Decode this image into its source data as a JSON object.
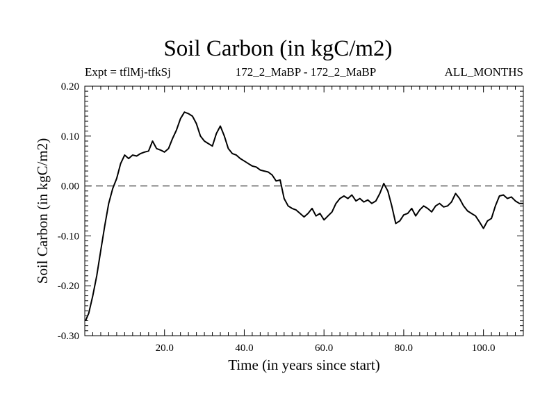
{
  "header": {
    "title": "Soil Carbon (in kgC/m2)",
    "expt": "Expt = tflMj-tfkSj",
    "subtitle": "172_2_MaBP - 172_2_MaBP",
    "period": "ALL_MONTHS"
  },
  "chart_data": {
    "type": "line",
    "title": "Soil Carbon (in kgC/m2)",
    "xlabel": "Time (in years since start)",
    "ylabel": "Soil Carbon (in kgC/m2)",
    "xlim": [
      0,
      110
    ],
    "ylim": [
      -0.3,
      0.2
    ],
    "x_ticks": [
      20,
      40,
      60,
      80,
      100
    ],
    "x_tick_labels": [
      "20.0",
      "40.0",
      "60.0",
      "80.0",
      "100.0"
    ],
    "y_ticks": [
      -0.3,
      -0.2,
      -0.1,
      0.0,
      0.1,
      0.2
    ],
    "y_tick_labels": [
      "-0.30",
      "-0.20",
      "-0.10",
      "0.00",
      "0.10",
      "0.20"
    ],
    "reference_line": {
      "y": 0.0,
      "style": "dashed"
    },
    "series": [
      {
        "name": "Soil Carbon",
        "x": [
          0.2,
          1,
          2,
          3,
          4,
          5,
          6,
          7,
          8,
          9,
          10,
          11,
          12,
          13,
          14,
          15,
          16,
          17,
          18,
          19,
          20,
          21,
          22,
          23,
          24,
          25,
          26,
          27,
          28,
          29,
          30,
          31,
          32,
          33,
          34,
          35,
          36,
          37,
          38,
          39,
          40,
          41,
          42,
          43,
          44,
          45,
          46,
          47,
          48,
          49,
          50,
          51,
          52,
          53,
          54,
          55,
          56,
          57,
          58,
          59,
          60,
          61,
          62,
          63,
          64,
          65,
          66,
          67,
          68,
          69,
          70,
          71,
          72,
          73,
          74,
          75,
          76,
          77,
          78,
          79,
          80,
          81,
          82,
          83,
          84,
          85,
          86,
          87,
          88,
          89,
          90,
          91,
          92,
          93,
          94,
          95,
          96,
          97,
          98,
          99,
          100,
          101,
          102,
          103,
          104,
          105,
          106,
          107,
          108,
          109,
          110
        ],
        "values": [
          -0.27,
          -0.255,
          -0.22,
          -0.18,
          -0.13,
          -0.08,
          -0.035,
          -0.005,
          0.015,
          0.045,
          0.062,
          0.055,
          0.062,
          0.06,
          0.065,
          0.068,
          0.07,
          0.09,
          0.075,
          0.072,
          0.068,
          0.075,
          0.095,
          0.112,
          0.135,
          0.148,
          0.145,
          0.14,
          0.125,
          0.1,
          0.09,
          0.085,
          0.08,
          0.105,
          0.12,
          0.1,
          0.075,
          0.065,
          0.062,
          0.055,
          0.05,
          0.045,
          0.04,
          0.038,
          0.032,
          0.03,
          0.028,
          0.022,
          0.01,
          0.012,
          -0.025,
          -0.04,
          -0.045,
          -0.048,
          -0.055,
          -0.062,
          -0.055,
          -0.045,
          -0.06,
          -0.055,
          -0.068,
          -0.06,
          -0.052,
          -0.035,
          -0.025,
          -0.02,
          -0.025,
          -0.018,
          -0.03,
          -0.025,
          -0.032,
          -0.028,
          -0.035,
          -0.03,
          -0.015,
          0.005,
          -0.01,
          -0.04,
          -0.075,
          -0.07,
          -0.058,
          -0.055,
          -0.045,
          -0.06,
          -0.048,
          -0.04,
          -0.045,
          -0.052,
          -0.04,
          -0.035,
          -0.042,
          -0.04,
          -0.032,
          -0.015,
          -0.025,
          -0.04,
          -0.05,
          -0.055,
          -0.06,
          -0.072,
          -0.085,
          -0.07,
          -0.065,
          -0.04,
          -0.02,
          -0.018,
          -0.025,
          -0.022,
          -0.03,
          -0.035,
          -0.035
        ]
      }
    ]
  }
}
